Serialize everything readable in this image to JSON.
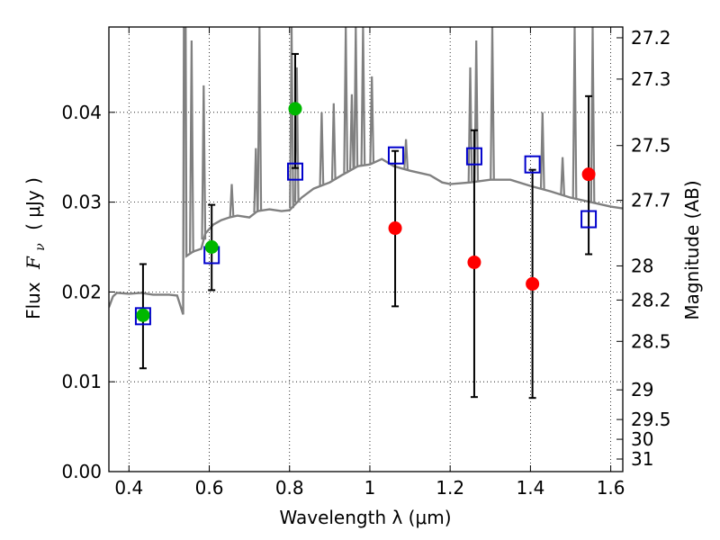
{
  "chart_data": {
    "type": "scatter",
    "xlabel": "Wavelength  λ (μm)",
    "ylabel_prefix": "Flux",
    "ylabel_symbol": "F",
    "ylabel_subscript": "ν",
    "ylabel_unit": "( μJy )",
    "ylabel_right": "Magnitude (AB)",
    "xlim": [
      0.35,
      1.63
    ],
    "ylim": [
      0.0,
      0.0495
    ],
    "x_ticks": [
      {
        "value": 0.4,
        "label": "0.4"
      },
      {
        "value": 0.6,
        "label": "0.6"
      },
      {
        "value": 0.8,
        "label": "0.8"
      },
      {
        "value": 1.0,
        "label": "1"
      },
      {
        "value": 1.2,
        "label": "1.2"
      },
      {
        "value": 1.4,
        "label": "1.4"
      },
      {
        "value": 1.6,
        "label": "1.6"
      }
    ],
    "y_ticks": [
      {
        "value": 0.0,
        "label": "0.00"
      },
      {
        "value": 0.01,
        "label": "0.01"
      },
      {
        "value": 0.02,
        "label": "0.02"
      },
      {
        "value": 0.03,
        "label": "0.03"
      },
      {
        "value": 0.04,
        "label": "0.04"
      }
    ],
    "right_ticks": [
      {
        "flux": 0.0483,
        "label": "27.2"
      },
      {
        "flux": 0.0437,
        "label": "27.3"
      },
      {
        "flux": 0.0363,
        "label": "27.5"
      },
      {
        "flux": 0.0302,
        "label": "27.7"
      },
      {
        "flux": 0.0229,
        "label": "28"
      },
      {
        "flux": 0.0191,
        "label": "28.2"
      },
      {
        "flux": 0.0145,
        "label": "28.5"
      },
      {
        "flux": 0.0091,
        "label": "29"
      },
      {
        "flux": 0.0058,
        "label": "29.5"
      },
      {
        "flux": 0.0036,
        "label": "30"
      },
      {
        "flux": 0.0014,
        "label": "31"
      }
    ],
    "grid": true,
    "spectrum": {
      "color": "#808080",
      "points": [
        [
          0.35,
          0.0183
        ],
        [
          0.36,
          0.0195
        ],
        [
          0.37,
          0.0199
        ],
        [
          0.4,
          0.0198
        ],
        [
          0.43,
          0.0199
        ],
        [
          0.46,
          0.0197
        ],
        [
          0.5,
          0.0197
        ],
        [
          0.52,
          0.0196
        ],
        [
          0.535,
          0.0175
        ],
        [
          0.537,
          0.0495
        ],
        [
          0.541,
          0.0495
        ],
        [
          0.543,
          0.024
        ],
        [
          0.56,
          0.0245
        ],
        [
          0.58,
          0.0248
        ],
        [
          0.59,
          0.0265
        ],
        [
          0.61,
          0.0275
        ],
        [
          0.63,
          0.028
        ],
        [
          0.65,
          0.0283
        ],
        [
          0.67,
          0.0285
        ],
        [
          0.7,
          0.0283
        ],
        [
          0.72,
          0.029
        ],
        [
          0.75,
          0.0292
        ],
        [
          0.78,
          0.029
        ],
        [
          0.8,
          0.0291
        ],
        [
          0.83,
          0.0305
        ],
        [
          0.86,
          0.0315
        ],
        [
          0.9,
          0.0322
        ],
        [
          0.93,
          0.033
        ],
        [
          0.95,
          0.0335
        ],
        [
          0.97,
          0.034
        ],
        [
          1.0,
          0.0342
        ],
        [
          1.03,
          0.0348
        ],
        [
          1.06,
          0.034
        ],
        [
          1.1,
          0.0335
        ],
        [
          1.15,
          0.033
        ],
        [
          1.18,
          0.0322
        ],
        [
          1.2,
          0.032
        ],
        [
          1.25,
          0.0322
        ],
        [
          1.3,
          0.0325
        ],
        [
          1.35,
          0.0325
        ],
        [
          1.4,
          0.0318
        ],
        [
          1.45,
          0.0312
        ],
        [
          1.5,
          0.0305
        ],
        [
          1.55,
          0.03
        ],
        [
          1.6,
          0.0295
        ],
        [
          1.63,
          0.0293
        ]
      ],
      "peaks": [
        {
          "x": 0.538,
          "top": 0.0495
        },
        {
          "x": 0.556,
          "top": 0.048
        },
        {
          "x": 0.586,
          "top": 0.043
        },
        {
          "x": 0.656,
          "top": 0.032
        },
        {
          "x": 0.716,
          "top": 0.036
        },
        {
          "x": 0.725,
          "top": 0.0495
        },
        {
          "x": 0.805,
          "top": 0.0495
        },
        {
          "x": 0.818,
          "top": 0.045
        },
        {
          "x": 0.88,
          "top": 0.04
        },
        {
          "x": 0.91,
          "top": 0.041
        },
        {
          "x": 0.94,
          "top": 0.0495
        },
        {
          "x": 0.955,
          "top": 0.042
        },
        {
          "x": 0.965,
          "top": 0.0495
        },
        {
          "x": 0.983,
          "top": 0.0495
        },
        {
          "x": 1.005,
          "top": 0.044
        },
        {
          "x": 1.09,
          "top": 0.037
        },
        {
          "x": 1.25,
          "top": 0.045
        },
        {
          "x": 1.265,
          "top": 0.048
        },
        {
          "x": 1.305,
          "top": 0.0495
        },
        {
          "x": 1.43,
          "top": 0.04
        },
        {
          "x": 1.48,
          "top": 0.035
        },
        {
          "x": 1.51,
          "top": 0.0495
        },
        {
          "x": 1.555,
          "top": 0.0495
        }
      ]
    },
    "error_bars": [
      {
        "x": 0.435,
        "low": 0.0115,
        "high": 0.0231
      },
      {
        "x": 0.606,
        "low": 0.0202,
        "high": 0.0297
      },
      {
        "x": 0.814,
        "low": 0.0338,
        "high": 0.0465
      },
      {
        "x": 1.063,
        "low": 0.0184,
        "high": 0.0357
      },
      {
        "x": 1.26,
        "low": 0.0083,
        "high": 0.038
      },
      {
        "x": 1.405,
        "low": 0.0082,
        "high": 0.0336
      },
      {
        "x": 1.545,
        "low": 0.0242,
        "high": 0.0418
      }
    ],
    "model_points": {
      "color": "#0000cc",
      "points": [
        {
          "x": 0.435,
          "y": 0.0173
        },
        {
          "x": 0.606,
          "y": 0.0241
        },
        {
          "x": 0.814,
          "y": 0.0334
        },
        {
          "x": 1.065,
          "y": 0.0352
        },
        {
          "x": 1.26,
          "y": 0.0351
        },
        {
          "x": 1.405,
          "y": 0.0342
        },
        {
          "x": 1.545,
          "y": 0.0281
        }
      ]
    },
    "detections": {
      "color": "#00b800",
      "points": [
        {
          "x": 0.435,
          "y": 0.0174
        },
        {
          "x": 0.606,
          "y": 0.025
        },
        {
          "x": 0.814,
          "y": 0.0404
        }
      ]
    },
    "non_detections": {
      "color": "#ff0000",
      "points": [
        {
          "x": 1.063,
          "y": 0.0271
        },
        {
          "x": 1.26,
          "y": 0.0233
        },
        {
          "x": 1.405,
          "y": 0.0209
        },
        {
          "x": 1.545,
          "y": 0.0331
        }
      ]
    }
  }
}
